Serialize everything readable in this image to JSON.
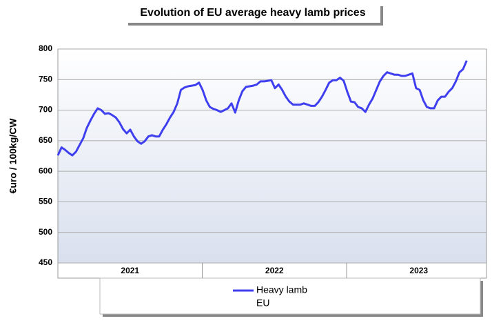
{
  "chart_data": {
    "type": "line",
    "title": "Evolution of EU average heavy lamb prices",
    "y_label": "€uro / 100kg/CW",
    "year_labels": [
      "2021",
      "2022",
      "2023"
    ],
    "series": [
      {
        "name": "Heavy lamb",
        "color": "#3f3ff0",
        "values": [
          626,
          639,
          635,
          630,
          626,
          632,
          643,
          654,
          671,
          683,
          694,
          703,
          700,
          694,
          695,
          692,
          688,
          680,
          669,
          662,
          668,
          657,
          649,
          645,
          649,
          657,
          659,
          657,
          657,
          668,
          677,
          688,
          697,
          711,
          733,
          737,
          739,
          740,
          741,
          745,
          733,
          716,
          705,
          702,
          700,
          697,
          700,
          703,
          711,
          696,
          716,
          731,
          738,
          739,
          740,
          742,
          747,
          747,
          748,
          749,
          736,
          742,
          733,
          722,
          714,
          709,
          709,
          709,
          711,
          709,
          707,
          707,
          713,
          722,
          733,
          745,
          749,
          749,
          753,
          748,
          730,
          714,
          713,
          705,
          703,
          697,
          709,
          719,
          733,
          747,
          756,
          762,
          760,
          758,
          758,
          756,
          756,
          758,
          760,
          736,
          733,
          716,
          705,
          703,
          703,
          716,
          722,
          722,
          730,
          736,
          747,
          762,
          767,
          781
        ]
      }
    ],
    "legend_subtitle": "EU",
    "ylim": [
      450,
      800
    ],
    "yticks": [
      450,
      500,
      550,
      600,
      650,
      700,
      750,
      800
    ],
    "grid": true
  }
}
